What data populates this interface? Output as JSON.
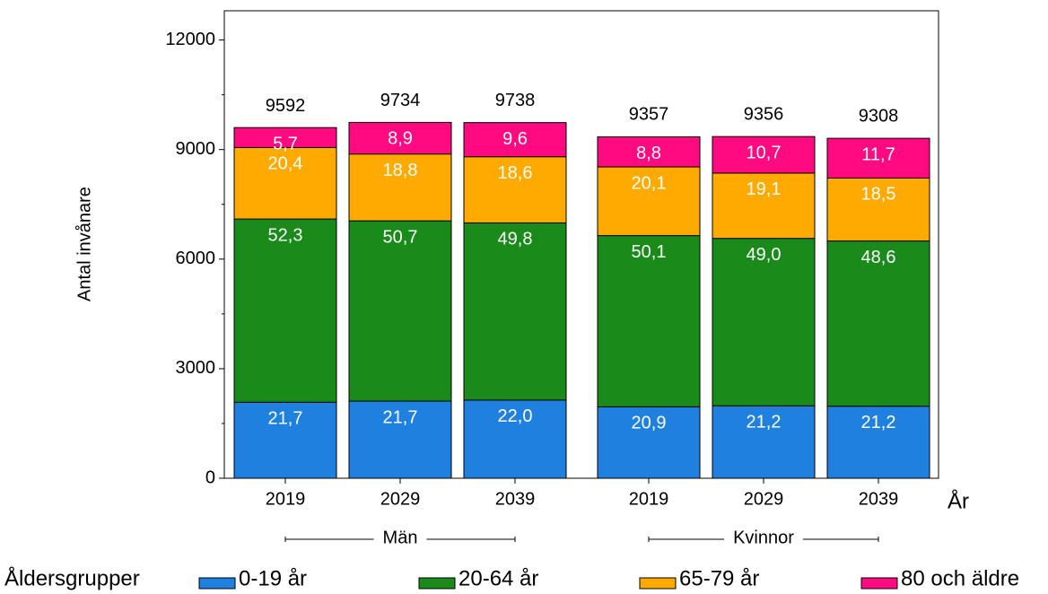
{
  "chart_data": {
    "type": "stacked_bar_percent",
    "y_label": "Antal invånare",
    "x_label": "År",
    "legend_title": "Åldersgrupper",
    "groups": [
      {
        "name": "Män",
        "categories": [
          "2019",
          "2029",
          "2039"
        ]
      },
      {
        "name": "Kvinnor",
        "categories": [
          "2019",
          "2029",
          "2039"
        ]
      }
    ],
    "totals": [
      9592,
      9734,
      9738,
      9357,
      9356,
      9308
    ],
    "series": [
      {
        "name": "0-19 år",
        "color": "#1f80e0",
        "values": [
          21.7,
          21.7,
          22.0,
          20.9,
          21.2,
          21.2
        ],
        "value_labels": [
          "21,7",
          "21,7",
          "22,0",
          "20,9",
          "21,2",
          "21,2"
        ]
      },
      {
        "name": "20-64 år",
        "color": "#1a8a1a",
        "values": [
          52.3,
          50.7,
          49.8,
          50.1,
          49.0,
          48.6
        ],
        "value_labels": [
          "52,3",
          "50,7",
          "49,8",
          "50,1",
          "49,0",
          "48,6"
        ]
      },
      {
        "name": "65-79 år",
        "color": "#ffaa00",
        "values": [
          20.4,
          18.8,
          18.6,
          20.1,
          19.1,
          18.5
        ],
        "value_labels": [
          "20,4",
          "18,8",
          "18,6",
          "20,1",
          "19,1",
          "18,5"
        ]
      },
      {
        "name": "80 och äldre",
        "color": "#ff0a80",
        "values": [
          5.7,
          8.9,
          9.6,
          8.8,
          10.7,
          11.7
        ],
        "value_labels": [
          "5,7",
          "8,9",
          "9,6",
          "8,8",
          "10,7",
          "11,7"
        ]
      }
    ],
    "ylim": [
      0,
      12800
    ],
    "yticks": [
      0,
      3000,
      6000,
      9000,
      12000
    ],
    "grid": false
  }
}
